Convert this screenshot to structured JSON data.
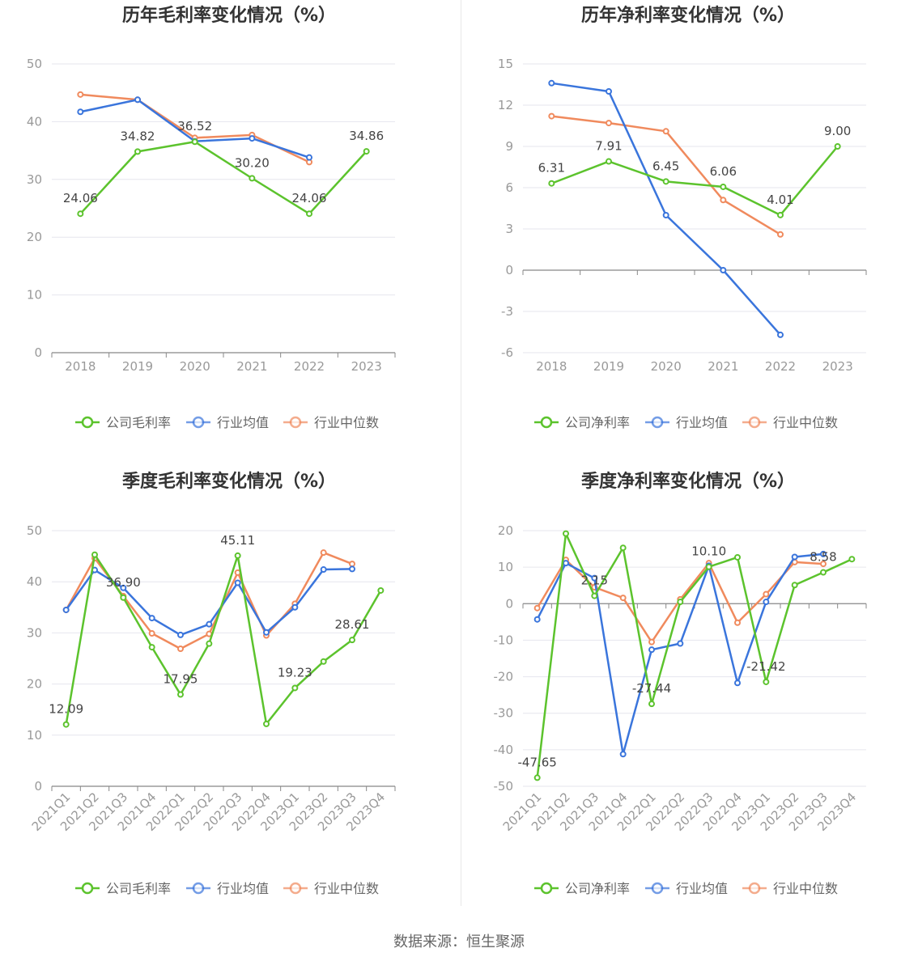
{
  "colors": {
    "company": "#5cc32d",
    "average": "#3a75dc",
    "median": "#f08a5d"
  },
  "footer": "数据来源：恒生聚源",
  "chart_data": [
    {
      "id": "annual-gross",
      "type": "line",
      "title": "历年毛利率变化情况（%）",
      "categories": [
        "2018",
        "2019",
        "2020",
        "2021",
        "2022",
        "2023"
      ],
      "ylim": [
        0,
        50
      ],
      "yticks": [
        0,
        10,
        20,
        30,
        40,
        50
      ],
      "series": [
        {
          "name": "公司毛利率",
          "key": "company",
          "values": [
            24.06,
            34.82,
            36.52,
            30.2,
            24.06,
            34.86
          ],
          "labels": [
            "24.06",
            "34.82",
            "36.52",
            "30.20",
            "24.06",
            "34.86"
          ]
        },
        {
          "name": "行业均值",
          "key": "average",
          "values": [
            41.7,
            43.8,
            36.6,
            37.1,
            33.8,
            null
          ]
        },
        {
          "name": "行业中位数",
          "key": "median",
          "values": [
            44.7,
            43.8,
            37.2,
            37.7,
            33.0,
            null
          ]
        }
      ]
    },
    {
      "id": "annual-net",
      "type": "line",
      "title": "历年净利率变化情况（%）",
      "categories": [
        "2018",
        "2019",
        "2020",
        "2021",
        "2022",
        "2023"
      ],
      "ylim": [
        -6,
        15
      ],
      "yticks": [
        -6,
        -3,
        0,
        3,
        6,
        9,
        12,
        15
      ],
      "series": [
        {
          "name": "公司净利率",
          "key": "company",
          "values": [
            6.31,
            7.91,
            6.45,
            6.06,
            4.01,
            9.0
          ],
          "labels": [
            "6.31",
            "7.91",
            "6.45",
            "6.06",
            "4.01",
            "9.00"
          ]
        },
        {
          "name": "行业均值",
          "key": "average",
          "values": [
            13.6,
            13.0,
            4.0,
            0.0,
            -4.7,
            null
          ]
        },
        {
          "name": "行业中位数",
          "key": "median",
          "values": [
            11.2,
            10.7,
            10.1,
            5.1,
            2.6,
            null
          ]
        }
      ]
    },
    {
      "id": "quarter-gross",
      "type": "line",
      "title": "季度毛利率变化情况（%）",
      "categories": [
        "2021Q1",
        "2021Q2",
        "2021Q3",
        "2021Q4",
        "2022Q1",
        "2022Q2",
        "2022Q3",
        "2022Q4",
        "2023Q1",
        "2023Q2",
        "2023Q3",
        "2023Q4"
      ],
      "ylim": [
        0,
        50
      ],
      "yticks": [
        0,
        10,
        20,
        30,
        40,
        50
      ],
      "rotate_x": true,
      "series": [
        {
          "name": "公司毛利率",
          "key": "company",
          "values": [
            12.09,
            45.3,
            36.9,
            27.2,
            17.95,
            27.9,
            45.11,
            12.2,
            19.23,
            24.4,
            28.61,
            38.3
          ],
          "labels": [
            "12.09",
            "",
            "36.90",
            "",
            "17.95",
            "",
            "45.11",
            "",
            "19.23",
            "",
            "28.61",
            ""
          ]
        },
        {
          "name": "行业均值",
          "key": "average",
          "values": [
            34.5,
            42.3,
            38.8,
            32.9,
            29.6,
            31.7,
            39.8,
            30.1,
            35.0,
            42.4,
            42.5,
            null
          ]
        },
        {
          "name": "行业中位数",
          "key": "median",
          "values": [
            34.5,
            44.6,
            37.2,
            29.9,
            26.9,
            29.8,
            41.8,
            29.5,
            35.7,
            45.7,
            43.5,
            null
          ]
        }
      ]
    },
    {
      "id": "quarter-net",
      "type": "line",
      "title": "季度净利率变化情况（%）",
      "categories": [
        "2021Q1",
        "2021Q2",
        "2021Q3",
        "2021Q4",
        "2022Q1",
        "2022Q2",
        "2022Q3",
        "2022Q4",
        "2023Q1",
        "2023Q2",
        "2023Q3",
        "2023Q4"
      ],
      "ylim": [
        -50,
        20
      ],
      "yticks": [
        -50,
        -40,
        -30,
        -20,
        -10,
        0,
        10,
        20
      ],
      "rotate_x": true,
      "series": [
        {
          "name": "公司净利率",
          "key": "company",
          "values": [
            -47.65,
            19.2,
            2.15,
            15.3,
            -27.44,
            0.5,
            10.1,
            12.7,
            -21.42,
            5.1,
            8.58,
            12.2
          ],
          "labels": [
            "-47.65",
            "",
            "2.15",
            "",
            "-27.44",
            "",
            "10.10",
            "",
            "-21.42",
            "",
            "8.58",
            ""
          ]
        },
        {
          "name": "行业均值",
          "key": "average",
          "values": [
            -4.3,
            11.1,
            7.0,
            -41.2,
            -12.6,
            -10.9,
            10.4,
            -21.7,
            0.5,
            12.8,
            13.6,
            null
          ]
        },
        {
          "name": "行业中位数",
          "key": "median",
          "values": [
            -1.2,
            12.0,
            4.5,
            1.6,
            -10.5,
            1.2,
            11.1,
            -5.2,
            2.6,
            11.4,
            10.9,
            null
          ]
        }
      ]
    }
  ]
}
